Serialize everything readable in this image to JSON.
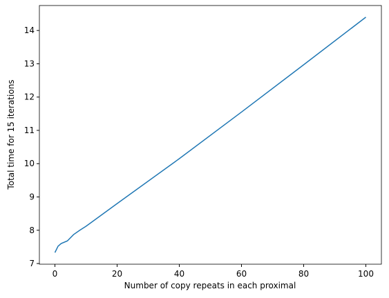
{
  "chart_data": {
    "type": "line",
    "xlabel": "Number of copy repeats in each proximal",
    "ylabel": "Total time for 15 iterations",
    "x": [
      0,
      1,
      2,
      4,
      6,
      8,
      10,
      20,
      40,
      60,
      80,
      100
    ],
    "series": [
      {
        "color": "#1f77b4",
        "values": [
          7.33,
          7.52,
          7.6,
          7.68,
          7.87,
          8.0,
          8.12,
          8.8,
          10.15,
          11.55,
          12.97,
          14.4
        ]
      }
    ],
    "xlim": [
      -5,
      105
    ],
    "ylim": [
      6.98,
      14.75
    ],
    "xticks": [
      0,
      20,
      40,
      60,
      80,
      100
    ],
    "yticks": [
      7,
      8,
      9,
      10,
      11,
      12,
      13,
      14
    ]
  }
}
